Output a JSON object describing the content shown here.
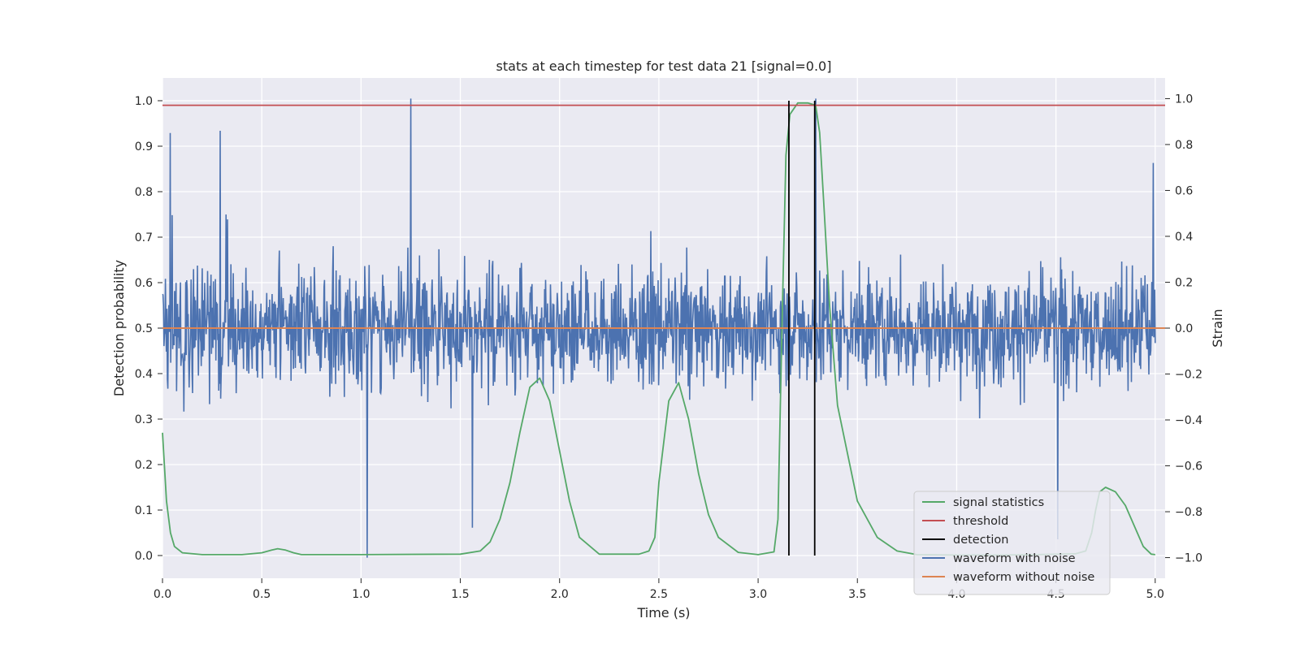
{
  "chart_data": {
    "type": "line",
    "title": "stats at each timestep for test data 21 [signal=0.0]",
    "xlabel": "Time (s)",
    "ylabel_left": "Detection probability",
    "ylabel_right": "Strain",
    "xlim": [
      0.0,
      5.05
    ],
    "ylim_left": [
      -0.05,
      1.05
    ],
    "ylim_right": [
      -1.09,
      1.09
    ],
    "grid": true,
    "legend_placement": "lower-right",
    "x_ticks": [
      "0.0",
      "0.5",
      "1.0",
      "1.5",
      "2.0",
      "2.5",
      "3.0",
      "3.5",
      "4.0",
      "4.5",
      "5.0"
    ],
    "x_tick_values": [
      0.0,
      0.5,
      1.0,
      1.5,
      2.0,
      2.5,
      3.0,
      3.5,
      4.0,
      4.5,
      5.0
    ],
    "y_left_ticks": [
      "0.0",
      "0.1",
      "0.2",
      "0.3",
      "0.4",
      "0.5",
      "0.6",
      "0.7",
      "0.8",
      "0.9",
      "1.0"
    ],
    "y_left_tick_values": [
      0.0,
      0.1,
      0.2,
      0.3,
      0.4,
      0.5,
      0.6,
      0.7,
      0.8,
      0.9,
      1.0
    ],
    "y_right_ticks": [
      "−1.0",
      "−0.8",
      "−0.6",
      "−0.4",
      "−0.2",
      "0.0",
      "0.2",
      "0.4",
      "0.6",
      "0.8",
      "1.0"
    ],
    "y_right_tick_values": [
      -1.0,
      -0.8,
      -0.6,
      -0.4,
      -0.2,
      0.0,
      0.2,
      0.4,
      0.6,
      0.8,
      1.0
    ],
    "legend": [
      {
        "label": "signal statistics",
        "color": "#55a868"
      },
      {
        "label": "threshold",
        "color": "#c44e52"
      },
      {
        "label": "detection",
        "color": "#000000"
      },
      {
        "label": "waveform with noise",
        "color": "#4c72b0"
      },
      {
        "label": "waveform without noise",
        "color": "#dd8452"
      }
    ],
    "series": [
      {
        "name": "signal statistics",
        "axis": "left",
        "color": "#55a868",
        "x": [
          0.0,
          0.02,
          0.04,
          0.06,
          0.1,
          0.2,
          0.4,
          0.5,
          0.55,
          0.58,
          0.62,
          0.66,
          0.7,
          1.0,
          1.5,
          1.6,
          1.65,
          1.7,
          1.75,
          1.8,
          1.85,
          1.9,
          1.95,
          2.0,
          2.05,
          2.1,
          2.2,
          2.4,
          2.45,
          2.48,
          2.5,
          2.55,
          2.6,
          2.65,
          2.7,
          2.75,
          2.8,
          2.9,
          3.0,
          3.08,
          3.1,
          3.12,
          3.14,
          3.16,
          3.2,
          3.25,
          3.29,
          3.31,
          3.33,
          3.36,
          3.4,
          3.5,
          3.6,
          3.7,
          3.8,
          4.0,
          4.2,
          4.4,
          4.6,
          4.65,
          4.68,
          4.7,
          4.72,
          4.75,
          4.8,
          4.85,
          4.9,
          4.94,
          4.98,
          5.0
        ],
        "values": [
          0.27,
          0.12,
          0.05,
          0.02,
          0.006,
          0.002,
          0.002,
          0.006,
          0.012,
          0.015,
          0.012,
          0.006,
          0.002,
          0.002,
          0.003,
          0.01,
          0.03,
          0.08,
          0.16,
          0.27,
          0.37,
          0.39,
          0.34,
          0.23,
          0.12,
          0.04,
          0.003,
          0.003,
          0.01,
          0.04,
          0.16,
          0.34,
          0.38,
          0.3,
          0.18,
          0.09,
          0.04,
          0.007,
          0.002,
          0.008,
          0.08,
          0.5,
          0.88,
          0.97,
          0.995,
          0.995,
          0.99,
          0.93,
          0.78,
          0.55,
          0.33,
          0.12,
          0.04,
          0.01,
          0.002,
          0.001,
          0.001,
          0.002,
          0.004,
          0.01,
          0.05,
          0.1,
          0.14,
          0.15,
          0.14,
          0.11,
          0.06,
          0.02,
          0.003,
          0.002
        ]
      },
      {
        "name": "threshold",
        "axis": "left",
        "color": "#c44e52",
        "x": [
          0.0,
          5.05
        ],
        "values": [
          0.99,
          0.99
        ]
      },
      {
        "name": "detection",
        "axis": "left",
        "color": "#000000",
        "x": [
          3.155,
          3.285
        ],
        "values": [
          1.0,
          1.0
        ]
      },
      {
        "name": "waveform with noise",
        "axis": "right",
        "color": "#4c72b0",
        "x": [
          0.0,
          5.0
        ],
        "n_samples": 2048,
        "amplitude_typical": 0.3,
        "values_range": [
          -1.0,
          1.0
        ],
        "notable_peaks": [
          [
            0.04,
            0.85
          ],
          [
            0.29,
            0.86
          ],
          [
            1.03,
            -1.0
          ],
          [
            1.25,
            1.0
          ],
          [
            1.56,
            -0.87
          ],
          [
            3.29,
            1.0
          ],
          [
            4.51,
            -0.92
          ],
          [
            4.99,
            0.72
          ]
        ]
      },
      {
        "name": "waveform without noise",
        "axis": "right",
        "color": "#dd8452",
        "x": [
          0.0,
          5.05
        ],
        "values": [
          0.0,
          0.0
        ]
      }
    ]
  }
}
